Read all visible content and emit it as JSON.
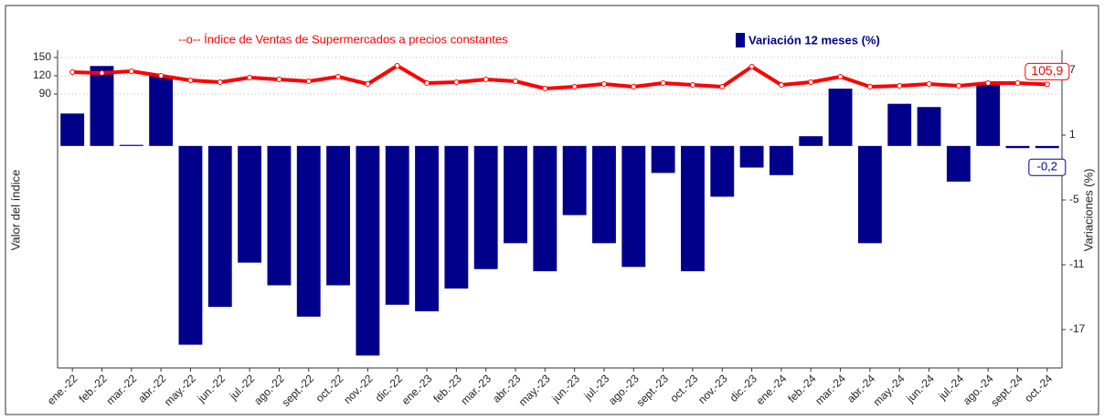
{
  "chart_data": {
    "type": "combo",
    "categories": [
      "ene.-22",
      "feb.-22",
      "mar.-22",
      "abr.-22",
      "may.-22",
      "jun.-22",
      "jul.-22",
      "ago.-22",
      "sept.-22",
      "oct.-22",
      "nov.-22",
      "dic.-22",
      "ene.-23",
      "feb.-23",
      "mar.-23",
      "abr.-23",
      "may.-23",
      "jun.-23",
      "jul.-23",
      "ago.-23",
      "sept.-23",
      "oct.-23",
      "nov.-23",
      "dic.-23",
      "ene.-24",
      "feb.-24",
      "mar.-24",
      "abr.-24",
      "may.-24",
      "jun.-24",
      "jul.-24",
      "ago.-24",
      "sept.-24",
      "oct.-24"
    ],
    "y_label": "Valor del índice",
    "y2_label": "Variaciones (%)",
    "ylim": [
      -360,
      162
    ],
    "yticks": [
      90,
      120,
      150
    ],
    "y2lim": [
      -20.55,
      8.86
    ],
    "y2ticks": [
      7,
      1,
      -5,
      -11,
      -17
    ],
    "grid": true,
    "series": [
      {
        "name": "--o-- Índice de Ventas de Supermercados a precios constantes",
        "type": "line",
        "axis": "y",
        "color": "#ff0000",
        "values": [
          126,
          124.5,
          127.5,
          120,
          112.5,
          109.5,
          117,
          114,
          111,
          118.5,
          106.5,
          136.5,
          108,
          109.5,
          114,
          111,
          99,
          102,
          106.5,
          102,
          108,
          105,
          102,
          135,
          105,
          109.5,
          118.5,
          102,
          103.5,
          106.5,
          103.5,
          108,
          108,
          105.9
        ],
        "value_labels": [
          null,
          null,
          null,
          null,
          null,
          null,
          null,
          null,
          null,
          null,
          null,
          null,
          null,
          null,
          null,
          null,
          null,
          null,
          null,
          null,
          null,
          null,
          null,
          null,
          null,
          null,
          null,
          null,
          null,
          null,
          null,
          null,
          null,
          "105,9"
        ]
      },
      {
        "name": "Variación 12 meses (%)",
        "type": "bar",
        "axis": "y2",
        "color": "#00008b",
        "values": [
          3.0,
          7.4,
          0.1,
          6.5,
          -18.4,
          -14.9,
          -10.8,
          -12.9,
          -15.8,
          -12.9,
          -19.4,
          -14.7,
          -15.3,
          -13.2,
          -11.4,
          -9.0,
          -11.6,
          -6.4,
          -9.0,
          -11.2,
          -2.5,
          -11.6,
          -4.7,
          -2.0,
          -2.7,
          0.9,
          5.3,
          -9.0,
          3.9,
          3.6,
          -3.3,
          5.7,
          -0.2,
          -0.2
        ],
        "value_labels": [
          null,
          null,
          null,
          null,
          null,
          null,
          null,
          null,
          null,
          null,
          null,
          null,
          null,
          null,
          null,
          null,
          null,
          null,
          null,
          null,
          null,
          null,
          null,
          null,
          null,
          null,
          null,
          null,
          null,
          null,
          null,
          null,
          null,
          "-0,2"
        ]
      }
    ]
  }
}
